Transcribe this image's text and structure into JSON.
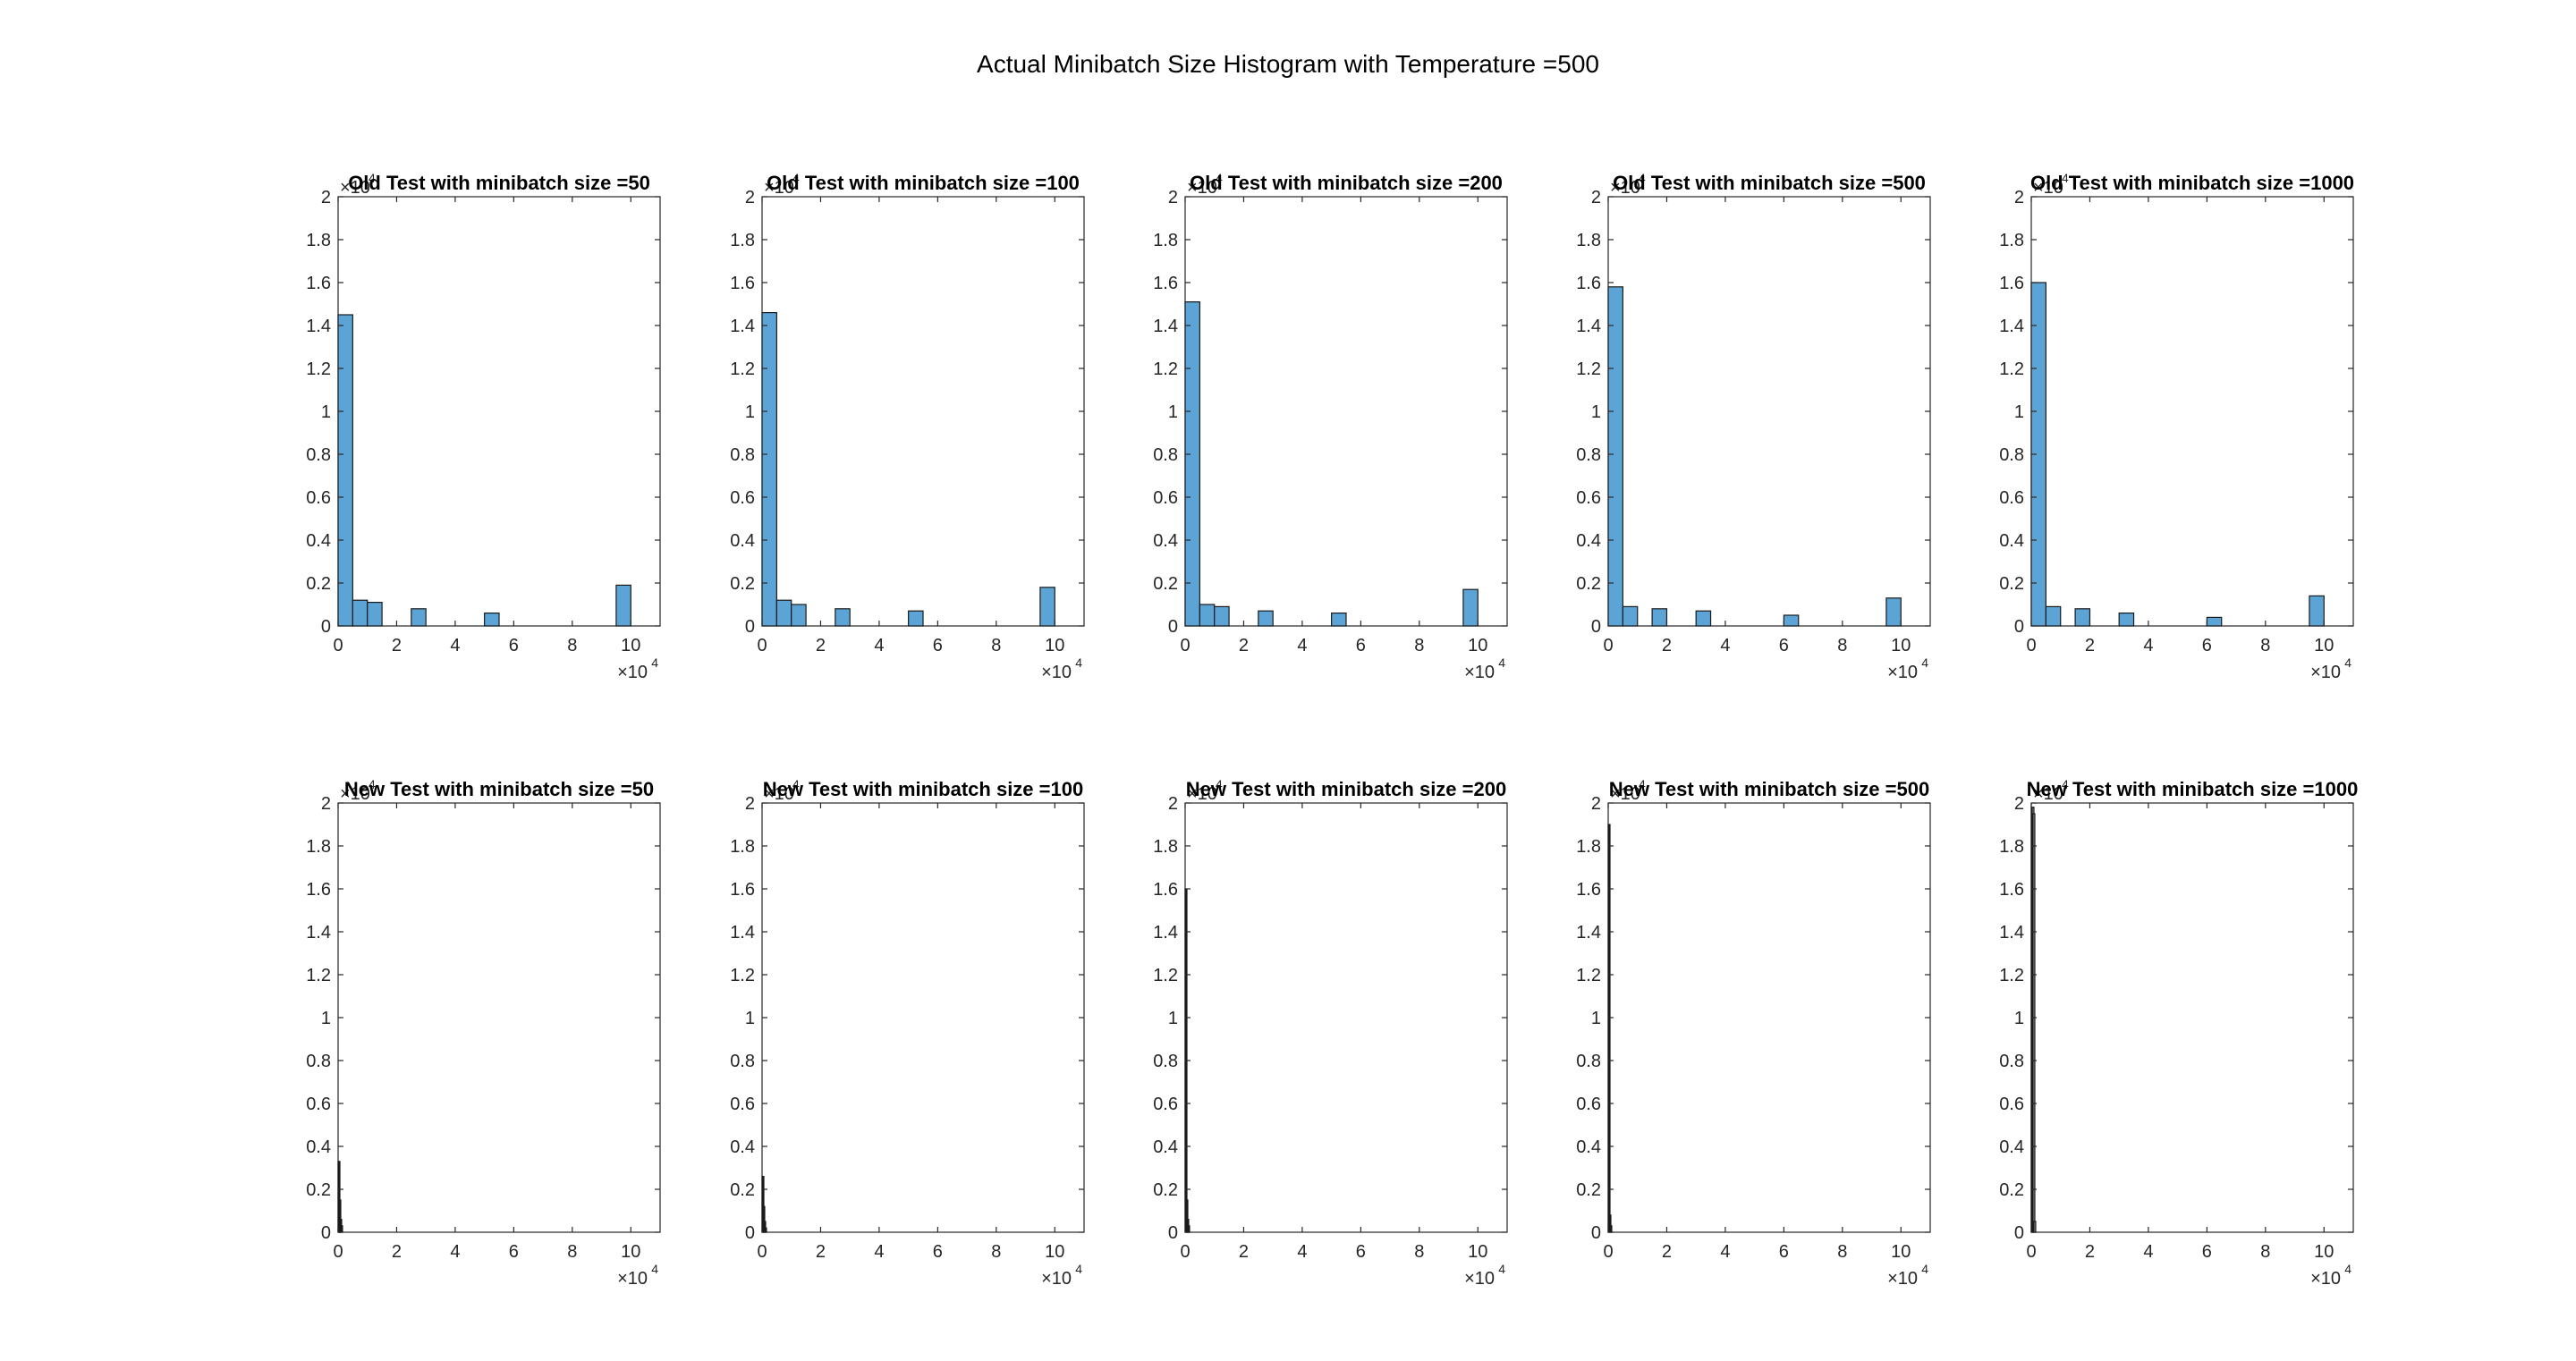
{
  "figure": {
    "suptitle": "Actual Minibatch Size Histogram with Temperature =500"
  },
  "chart_data": [
    {
      "type": "bar",
      "title": "Old Test with minibatch size =50",
      "xlim": [
        0,
        11
      ],
      "ylim": [
        0,
        2
      ],
      "x_exponent_label": "×10",
      "x_exponent": "4",
      "y_exponent_label": "×10",
      "y_exponent": "4",
      "xticks": [
        0,
        2,
        4,
        6,
        8,
        10
      ],
      "yticks": [
        0,
        0.2,
        0.4,
        0.6,
        0.8,
        1,
        1.2,
        1.4,
        1.6,
        1.8,
        2
      ],
      "bin_width": 0.5,
      "bins": [
        {
          "x": 0,
          "h": 1.45
        },
        {
          "x": 0.5,
          "h": 0.12
        },
        {
          "x": 1.0,
          "h": 0.11
        },
        {
          "x": 2.5,
          "h": 0.08
        },
        {
          "x": 5.0,
          "h": 0.06
        },
        {
          "x": 9.5,
          "h": 0.19
        }
      ],
      "color": "#5ca4d6"
    },
    {
      "type": "bar",
      "title": "Old Test with minibatch size =100",
      "xlim": [
        0,
        11
      ],
      "ylim": [
        0,
        2
      ],
      "x_exponent_label": "×10",
      "x_exponent": "4",
      "y_exponent_label": "×10",
      "y_exponent": "4",
      "xticks": [
        0,
        2,
        4,
        6,
        8,
        10
      ],
      "yticks": [
        0,
        0.2,
        0.4,
        0.6,
        0.8,
        1,
        1.2,
        1.4,
        1.6,
        1.8,
        2
      ],
      "bin_width": 0.5,
      "bins": [
        {
          "x": 0,
          "h": 1.46
        },
        {
          "x": 0.5,
          "h": 0.12
        },
        {
          "x": 1.0,
          "h": 0.1
        },
        {
          "x": 2.5,
          "h": 0.08
        },
        {
          "x": 5.0,
          "h": 0.07
        },
        {
          "x": 9.5,
          "h": 0.18
        }
      ],
      "color": "#5ca4d6"
    },
    {
      "type": "bar",
      "title": "Old Test with minibatch size =200",
      "xlim": [
        0,
        11
      ],
      "ylim": [
        0,
        2
      ],
      "x_exponent_label": "×10",
      "x_exponent": "4",
      "y_exponent_label": "×10",
      "y_exponent": "4",
      "xticks": [
        0,
        2,
        4,
        6,
        8,
        10
      ],
      "yticks": [
        0,
        0.2,
        0.4,
        0.6,
        0.8,
        1,
        1.2,
        1.4,
        1.6,
        1.8,
        2
      ],
      "bin_width": 0.5,
      "bins": [
        {
          "x": 0,
          "h": 1.51
        },
        {
          "x": 0.5,
          "h": 0.1
        },
        {
          "x": 1.0,
          "h": 0.09
        },
        {
          "x": 2.5,
          "h": 0.07
        },
        {
          "x": 5.0,
          "h": 0.06
        },
        {
          "x": 9.5,
          "h": 0.17
        }
      ],
      "color": "#5ca4d6"
    },
    {
      "type": "bar",
      "title": "Old Test with minibatch size =500",
      "xlim": [
        0,
        11
      ],
      "ylim": [
        0,
        2
      ],
      "x_exponent_label": "×10",
      "x_exponent": "4",
      "y_exponent_label": "×10",
      "y_exponent": "4",
      "xticks": [
        0,
        2,
        4,
        6,
        8,
        10
      ],
      "yticks": [
        0,
        0.2,
        0.4,
        0.6,
        0.8,
        1,
        1.2,
        1.4,
        1.6,
        1.8,
        2
      ],
      "bin_width": 0.5,
      "bins": [
        {
          "x": 0,
          "h": 1.58
        },
        {
          "x": 0.5,
          "h": 0.09
        },
        {
          "x": 1.5,
          "h": 0.08
        },
        {
          "x": 3.0,
          "h": 0.07
        },
        {
          "x": 6.0,
          "h": 0.05
        },
        {
          "x": 9.5,
          "h": 0.13
        }
      ],
      "color": "#5ca4d6"
    },
    {
      "type": "bar",
      "title": "Old Test with minibatch size =1000",
      "xlim": [
        0,
        11
      ],
      "ylim": [
        0,
        2
      ],
      "x_exponent_label": "×10",
      "x_exponent": "4",
      "y_exponent_label": "×10",
      "y_exponent": "4",
      "xticks": [
        0,
        2,
        4,
        6,
        8,
        10
      ],
      "yticks": [
        0,
        0.2,
        0.4,
        0.6,
        0.8,
        1,
        1.2,
        1.4,
        1.6,
        1.8,
        2
      ],
      "bin_width": 0.5,
      "bins": [
        {
          "x": 0,
          "h": 1.6
        },
        {
          "x": 0.5,
          "h": 0.09
        },
        {
          "x": 1.5,
          "h": 0.08
        },
        {
          "x": 3.0,
          "h": 0.06
        },
        {
          "x": 6.0,
          "h": 0.04
        },
        {
          "x": 9.5,
          "h": 0.14
        }
      ],
      "color": "#5ca4d6"
    },
    {
      "type": "bar",
      "title": "New Test with minibatch size =50",
      "xlim": [
        0,
        11
      ],
      "ylim": [
        0,
        2
      ],
      "x_exponent_label": "×10",
      "x_exponent": "4",
      "y_exponent_label": "×10",
      "y_exponent": "4",
      "xticks": [
        0,
        2,
        4,
        6,
        8,
        10
      ],
      "yticks": [
        0,
        0.2,
        0.4,
        0.6,
        0.8,
        1,
        1.2,
        1.4,
        1.6,
        1.8,
        2
      ],
      "bin_width": 0.03,
      "bins": [
        {
          "x": 0,
          "h": 0.33
        },
        {
          "x": 0.03,
          "h": 0.15
        },
        {
          "x": 0.06,
          "h": 0.06
        },
        {
          "x": 0.09,
          "h": 0.03
        }
      ],
      "color": "#1a1a1a"
    },
    {
      "type": "bar",
      "title": "New Test with minibatch size =100",
      "xlim": [
        0,
        11
      ],
      "ylim": [
        0,
        2
      ],
      "x_exponent_label": "×10",
      "x_exponent": "4",
      "y_exponent_label": "×10",
      "y_exponent": "4",
      "xticks": [
        0,
        2,
        4,
        6,
        8,
        10
      ],
      "yticks": [
        0,
        0.2,
        0.4,
        0.6,
        0.8,
        1,
        1.2,
        1.4,
        1.6,
        1.8,
        2
      ],
      "bin_width": 0.03,
      "bins": [
        {
          "x": 0,
          "h": 0.26
        },
        {
          "x": 0.03,
          "h": 0.12
        },
        {
          "x": 0.06,
          "h": 0.05
        },
        {
          "x": 0.09,
          "h": 0.02
        }
      ],
      "color": "#1a1a1a"
    },
    {
      "type": "bar",
      "title": "New Test with minibatch size =200",
      "xlim": [
        0,
        11
      ],
      "ylim": [
        0,
        2
      ],
      "x_exponent_label": "×10",
      "x_exponent": "4",
      "y_exponent_label": "×10",
      "y_exponent": "4",
      "xticks": [
        0,
        2,
        4,
        6,
        8,
        10
      ],
      "yticks": [
        0,
        0.2,
        0.4,
        0.6,
        0.8,
        1,
        1.2,
        1.4,
        1.6,
        1.8,
        2
      ],
      "bin_width": 0.03,
      "bins": [
        {
          "x": 0,
          "h": 1.6
        },
        {
          "x": 0.03,
          "h": 0.15
        },
        {
          "x": 0.06,
          "h": 0.06
        },
        {
          "x": 0.09,
          "h": 0.03
        }
      ],
      "color": "#1a1a1a"
    },
    {
      "type": "bar",
      "title": "New Test with minibatch size =500",
      "xlim": [
        0,
        11
      ],
      "ylim": [
        0,
        2
      ],
      "x_exponent_label": "×10",
      "x_exponent": "4",
      "y_exponent_label": "×10",
      "y_exponent": "4",
      "xticks": [
        0,
        2,
        4,
        6,
        8,
        10
      ],
      "yticks": [
        0,
        0.2,
        0.4,
        0.6,
        0.8,
        1,
        1.2,
        1.4,
        1.6,
        1.8,
        2
      ],
      "bin_width": 0.03,
      "bins": [
        {
          "x": 0,
          "h": 1.9
        },
        {
          "x": 0.03,
          "h": 0.08
        },
        {
          "x": 0.06,
          "h": 0.03
        }
      ],
      "color": "#1a1a1a"
    },
    {
      "type": "bar",
      "title": "New Test with minibatch size =1000",
      "xlim": [
        0,
        11
      ],
      "ylim": [
        0,
        2
      ],
      "x_exponent_label": "×10",
      "x_exponent": "4",
      "y_exponent_label": "×10",
      "y_exponent": "4",
      "xticks": [
        0,
        2,
        4,
        6,
        8,
        10
      ],
      "yticks": [
        0,
        0.2,
        0.4,
        0.6,
        0.8,
        1,
        1.2,
        1.4,
        1.6,
        1.8,
        2
      ],
      "bin_width": 0.03,
      "bins": [
        {
          "x": 0,
          "h": 1.98
        },
        {
          "x": 0.03,
          "h": 1.98
        },
        {
          "x": 0.06,
          "h": 1.95
        },
        {
          "x": 0.09,
          "h": 0.05
        }
      ],
      "color": "#9a9a9a"
    }
  ]
}
